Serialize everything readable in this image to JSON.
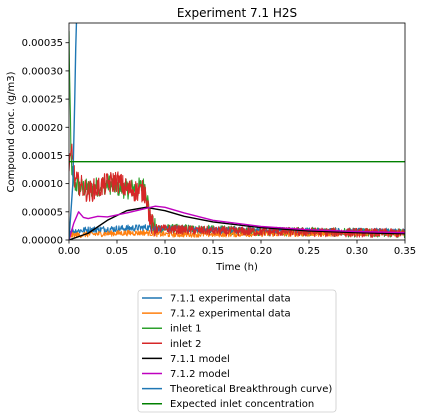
{
  "chart_data": {
    "type": "line",
    "title": "Experiment 7.1 H2S",
    "xlabel": "Time (h)",
    "ylabel": "Compound conc. (g/m3)",
    "xlim": [
      0.0,
      0.35
    ],
    "ylim": [
      0.0,
      0.000385
    ],
    "xticks": [
      0.0,
      0.05,
      0.1,
      0.15,
      0.2,
      0.25,
      0.3,
      0.35
    ],
    "xtick_labels": [
      "0.00",
      "0.05",
      "0.10",
      "0.15",
      "0.20",
      "0.25",
      "0.30",
      "0.35"
    ],
    "yticks": [
      0.0,
      5e-05,
      0.0001,
      0.00015,
      0.0002,
      0.00025,
      0.0003,
      0.00035
    ],
    "ytick_labels": [
      "0.00000",
      "0.00005",
      "0.00010",
      "0.00015",
      "0.00020",
      "0.00025",
      "0.00030",
      "0.00035"
    ],
    "grid": false,
    "legend_position": "below plot",
    "series": [
      {
        "name": "7.1.1 experimental data",
        "color": "#1f77b4",
        "style": "noisy",
        "x": [
          0.0,
          0.02,
          0.05,
          0.08,
          0.1,
          0.15,
          0.2,
          0.25,
          0.3,
          0.35
        ],
        "values": [
          1.5e-05,
          1.8e-05,
          2e-05,
          2.2e-05,
          2e-05,
          1.8e-05,
          1.7e-05,
          1.6e-05,
          1.5e-05,
          1.5e-05
        ]
      },
      {
        "name": "7.1.2 experimental data",
        "color": "#ff7f0e",
        "style": "noisy",
        "x": [
          0.0,
          0.02,
          0.05,
          0.08,
          0.09,
          0.1,
          0.15,
          0.2,
          0.25,
          0.3,
          0.35
        ],
        "values": [
          8e-06,
          1e-05,
          1.2e-05,
          1.3e-05,
          1.1e-05,
          1e-05,
          1e-05,
          1.1e-05,
          1.1e-05,
          1.2e-05,
          1.2e-05
        ]
      },
      {
        "name": "inlet 1",
        "color": "#2ca02c",
        "style": "noisy",
        "x": [
          0.0,
          0.002,
          0.004,
          0.006,
          0.01,
          0.02,
          0.04,
          0.06,
          0.08,
          0.085,
          0.09,
          0.12,
          0.15,
          0.2,
          0.25,
          0.3,
          0.35
        ],
        "values": [
          0.000365,
          0.00015,
          0.000105,
          0.0001,
          9.5e-05,
          9e-05,
          0.0001,
          9e-05,
          9.5e-05,
          3e-05,
          2e-05,
          2e-05,
          1.8e-05,
          1.5e-05,
          1.5e-05,
          1.3e-05,
          1.2e-05
        ]
      },
      {
        "name": "inlet 2",
        "color": "#d62728",
        "style": "noisy",
        "x": [
          0.0,
          0.003,
          0.006,
          0.01,
          0.02,
          0.04,
          0.05,
          0.06,
          0.08,
          0.085,
          0.09,
          0.12,
          0.15,
          0.2,
          0.25,
          0.3,
          0.35
        ],
        "values": [
          0.00012,
          0.00016,
          0.000105,
          0.0001,
          8.5e-05,
          0.0001,
          0.000105,
          9e-05,
          8.5e-05,
          3e-05,
          2e-05,
          1.8e-05,
          1.6e-05,
          1.5e-05,
          1.4e-05,
          1.3e-05,
          1.2e-05
        ]
      },
      {
        "name": "7.1.1 model",
        "color": "#000000",
        "style": "smooth",
        "x": [
          0.0,
          0.02,
          0.04,
          0.06,
          0.08,
          0.1,
          0.12,
          0.15,
          0.2,
          0.25,
          0.3,
          0.35
        ],
        "values": [
          0.0,
          1.2e-05,
          3.5e-05,
          5.2e-05,
          5.8e-05,
          5.2e-05,
          4.2e-05,
          3.2e-05,
          2.2e-05,
          1.6e-05,
          1.3e-05,
          1.1e-05
        ]
      },
      {
        "name": "7.1.2 model",
        "color": "#bf00bf",
        "style": "smooth",
        "x": [
          0.0,
          0.005,
          0.01,
          0.015,
          0.02,
          0.03,
          0.04,
          0.06,
          0.08,
          0.09,
          0.1,
          0.12,
          0.15,
          0.2,
          0.25,
          0.3,
          0.35
        ],
        "values": [
          0.0,
          3e-05,
          5e-05,
          4e-05,
          3.8e-05,
          4.2e-05,
          4.1e-05,
          4.8e-05,
          5.6e-05,
          6e-05,
          5.8e-05,
          4.8e-05,
          3.5e-05,
          2.4e-05,
          1.8e-05,
          1.5e-05,
          1.3e-05
        ]
      },
      {
        "name": "Theoretical Breakthrough curve)",
        "color": "#1f77b4",
        "style": "smooth",
        "x": [
          0.0,
          0.004,
          0.006,
          0.007,
          0.008
        ],
        "values": [
          0.0,
          0.0001,
          0.00025,
          0.00034,
          0.0004
        ]
      },
      {
        "name": "Expected inlet concentration",
        "color": "#008000",
        "style": "flat",
        "x": [
          0.0,
          0.35
        ],
        "values": [
          0.000139,
          0.000139
        ]
      }
    ]
  }
}
